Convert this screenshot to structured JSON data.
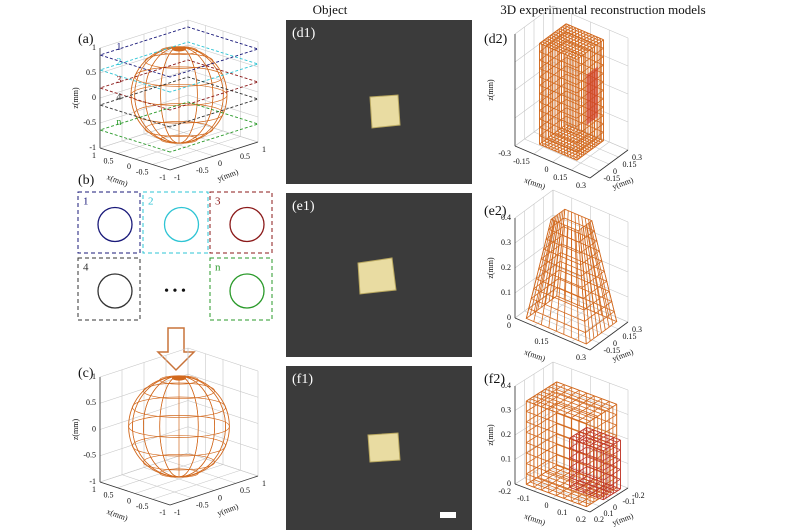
{
  "header": {
    "object": "Object",
    "models": "3D experimental reconstruction  models"
  },
  "panel_a": {
    "label": "(a)",
    "z_axis": "z(mm)",
    "x_axis": "x(mm)",
    "y_axis": "y(mm)",
    "z_ticks": [
      "1",
      "0.5",
      "0",
      "-0.5",
      "-1"
    ],
    "x_ticks": [
      "1",
      "0.5",
      "0",
      "-0.5",
      "-1"
    ],
    "y_ticks": [
      "-1",
      "-0.5",
      "0",
      "0.5",
      "1"
    ],
    "slices": [
      "1",
      "2",
      "3",
      "4",
      "n"
    ]
  },
  "panel_b": {
    "label": "(b)",
    "cells": [
      "1",
      "2",
      "3",
      "4",
      "n"
    ],
    "ellipsis": "• • •"
  },
  "panel_c": {
    "label": "(c)",
    "z_axis": "z(mm)",
    "x_axis": "x(mm)",
    "y_axis": "y(mm)",
    "z_ticks": [
      "1",
      "0.5",
      "0",
      "-0.5",
      "-1"
    ],
    "x_ticks": [
      "1",
      "0.5",
      "0",
      "-0.5",
      "-1"
    ],
    "y_ticks": [
      "-1",
      "-0.5",
      "0",
      "0.5",
      "1"
    ]
  },
  "panel_d1": {
    "label": "(d1)"
  },
  "panel_e1": {
    "label": "(e1)"
  },
  "panel_f1": {
    "label": "(f1)"
  },
  "panel_d2": {
    "label": "(d2)",
    "z_axis": "z(mm)",
    "x_axis": "x(mm)",
    "y_axis": "y(mm)",
    "x_ticks": [
      "-0.3",
      "-0.15",
      "0",
      "0.15",
      "0.3"
    ],
    "y_ticks": [
      "-0.15",
      "0",
      "0.15",
      "0.3"
    ]
  },
  "panel_e2": {
    "label": "(e2)",
    "z_axis": "z(mm)",
    "x_axis": "x(mm)",
    "y_axis": "y(mm)",
    "z_ticks": [
      "0.4",
      "0.3",
      "0.2",
      "0.1",
      "0"
    ],
    "x_ticks": [
      "0",
      "0.15",
      "0.3"
    ],
    "y_ticks": [
      "-0.15",
      "0",
      "0.15",
      "0.3"
    ]
  },
  "panel_f2": {
    "label": "(f2)",
    "z_axis": "z(mm)",
    "x_axis": "x(mm)",
    "y_axis": "y(mm)",
    "z_ticks": [
      "0.4",
      "0.3",
      "0.2",
      "0.1",
      "0"
    ],
    "x_ticks": [
      "-0.2",
      "-0.1",
      "0",
      "0.1",
      "0.2"
    ],
    "y_ticks": [
      "0.2",
      "0.1",
      "0",
      "-0.1",
      "-0.2"
    ]
  }
}
